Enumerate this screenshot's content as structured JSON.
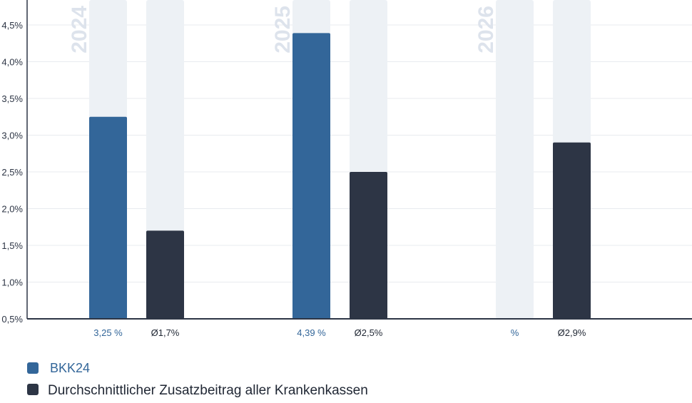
{
  "chart_data": {
    "type": "bar",
    "categories": [
      "2024",
      "2025",
      "2026"
    ],
    "ylim": [
      0.5,
      4.9
    ],
    "yticks": [
      {
        "value": 0.5,
        "label": "0,5%"
      },
      {
        "value": 1.0,
        "label": "1,0%"
      },
      {
        "value": 1.5,
        "label": "1,5%"
      },
      {
        "value": 2.0,
        "label": "2,0%"
      },
      {
        "value": 2.5,
        "label": "2,5%"
      },
      {
        "value": 3.0,
        "label": "3,0%"
      },
      {
        "value": 3.5,
        "label": "3,5%"
      },
      {
        "value": 4.0,
        "label": "4,0%"
      },
      {
        "value": 4.5,
        "label": "4,5%"
      }
    ],
    "series": [
      {
        "name": "BKK24",
        "values": [
          3.25,
          4.39,
          null
        ],
        "data_labels": [
          "3,25 %",
          "4,39 %",
          "%"
        ]
      },
      {
        "name": "Durchschnittlicher Zusatzbeitrag aller Krankenkassen",
        "values": [
          1.7,
          2.5,
          2.9
        ],
        "data_labels": [
          "Ø1,7%",
          "Ø2,5%",
          "Ø2,9%"
        ]
      }
    ],
    "grid": true,
    "legend_position": "bottom-left",
    "colors": {
      "series_0": "#336699",
      "series_1": "#2d3545",
      "track": "#edf1f5",
      "year_label": "#dde3ec",
      "grid": "#e8ebef",
      "axis": "#2d3545"
    }
  },
  "legend": {
    "items": [
      {
        "label": "BKK24"
      },
      {
        "label": "Durchschnittlicher Zusatzbeitrag aller Krankenkassen"
      }
    ]
  }
}
